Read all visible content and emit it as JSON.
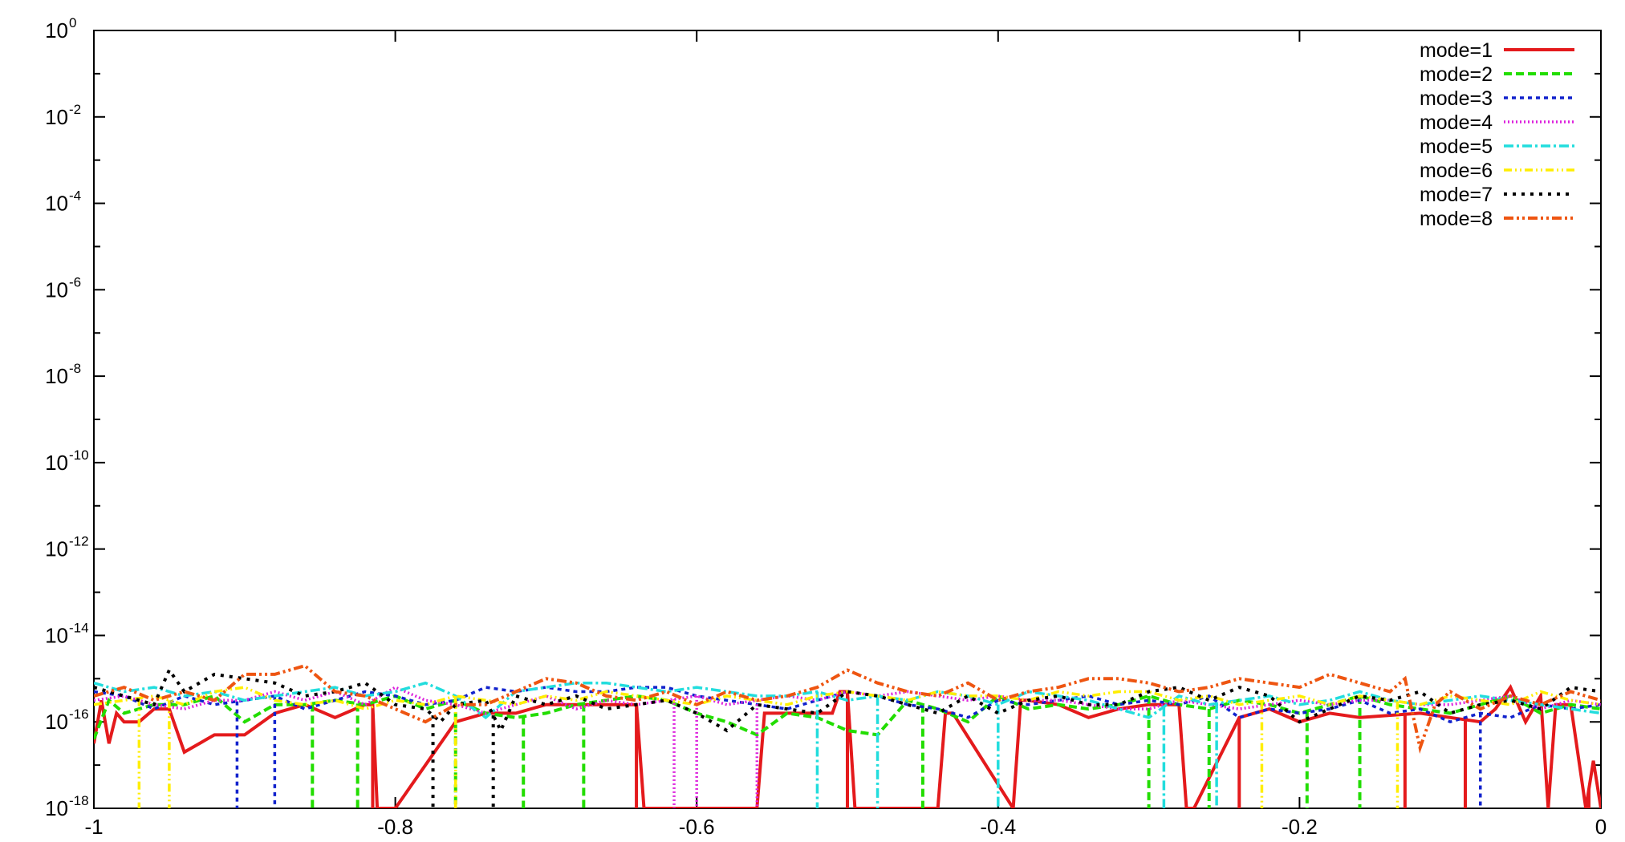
{
  "chart_data": {
    "type": "line",
    "title": "",
    "xlabel": "",
    "ylabel": "",
    "xlim": [
      -1,
      0
    ],
    "ylim": [
      1e-18,
      1
    ],
    "y_scale": "log",
    "x_ticks": [
      {
        "value": -1,
        "label": "-1"
      },
      {
        "value": -0.8,
        "label": "-0.8"
      },
      {
        "value": -0.6,
        "label": "-0.6"
      },
      {
        "value": -0.4,
        "label": "-0.4"
      },
      {
        "value": -0.2,
        "label": "-0.2"
      },
      {
        "value": 0,
        "label": "0"
      }
    ],
    "y_ticks": [
      {
        "value": 1,
        "base": "10",
        "exp": "0"
      },
      {
        "value": 0.01,
        "base": "10",
        "exp": "-2"
      },
      {
        "value": 0.0001,
        "base": "10",
        "exp": "-4"
      },
      {
        "value": 1e-06,
        "base": "10",
        "exp": "-6"
      },
      {
        "value": 1e-08,
        "base": "10",
        "exp": "-8"
      },
      {
        "value": 1e-10,
        "base": "10",
        "exp": "-10"
      },
      {
        "value": 1e-12,
        "base": "10",
        "exp": "-12"
      },
      {
        "value": 1e-14,
        "base": "10",
        "exp": "-14"
      },
      {
        "value": 1e-16,
        "base": "10",
        "exp": "-16"
      },
      {
        "value": 1e-18,
        "base": "10",
        "exp": "-18"
      }
    ],
    "grid": false,
    "legend_position": "top-right",
    "note": "series values are log10 of y",
    "series": [
      {
        "name": "mode=1",
        "color": "#e41a1c",
        "dash": "solid",
        "width": 4,
        "x": [
          -1.0,
          -0.995,
          -0.99,
          -0.985,
          -0.98,
          -0.97,
          -0.96,
          -0.95,
          -0.94,
          -0.92,
          -0.9,
          -0.88,
          -0.86,
          -0.84,
          -0.82,
          -0.815,
          -0.812,
          -0.81,
          -0.8,
          -0.76,
          -0.74,
          -0.72,
          -0.7,
          -0.68,
          -0.66,
          -0.64,
          -0.635,
          -0.63,
          -0.6,
          -0.58,
          -0.56,
          -0.555,
          -0.55,
          -0.53,
          -0.51,
          -0.505,
          -0.5,
          -0.495,
          -0.44,
          -0.435,
          -0.43,
          -0.39,
          -0.385,
          -0.38,
          -0.36,
          -0.34,
          -0.32,
          -0.3,
          -0.28,
          -0.275,
          -0.27,
          -0.24,
          -0.22,
          -0.2,
          -0.18,
          -0.16,
          -0.12,
          -0.1,
          -0.08,
          -0.07,
          -0.06,
          -0.05,
          -0.04,
          -0.035,
          -0.03,
          -0.02,
          -0.01,
          -0.005,
          0.0
        ],
        "y": [
          -16.5,
          -15.5,
          -16.5,
          -15.8,
          -16.0,
          -16.0,
          -15.7,
          -15.7,
          -16.7,
          -16.3,
          -16.3,
          -15.8,
          -15.6,
          -15.9,
          -15.6,
          -15.6,
          -18,
          -18,
          -18,
          -16.0,
          -15.8,
          -15.8,
          -15.6,
          -15.6,
          -15.6,
          -15.6,
          -18,
          -18,
          -18,
          -18,
          -18,
          -15.8,
          -15.8,
          -15.8,
          -15.8,
          -15.3,
          -15.3,
          -18,
          -18,
          -15.8,
          -15.8,
          -18,
          -15.5,
          -15.5,
          -15.6,
          -15.9,
          -15.7,
          -15.6,
          -15.6,
          -18,
          -18,
          -15.9,
          -15.7,
          -16.0,
          -15.8,
          -15.9,
          -15.8,
          -15.9,
          -16.0,
          -15.7,
          -15.2,
          -16.0,
          -15.4,
          -18,
          -15.6,
          -15.6,
          -18,
          -16.9,
          -18
        ],
        "drops": [
          -0.815,
          -0.64,
          -0.5,
          -0.44,
          -0.39,
          -0.275,
          -0.24,
          -0.13,
          -0.09,
          -0.035,
          -0.008
        ]
      },
      {
        "name": "mode=2",
        "color": "#22dd00",
        "dash": "10,5",
        "width": 4,
        "x": [
          -1.0,
          -0.99,
          -0.98,
          -0.97,
          -0.96,
          -0.94,
          -0.92,
          -0.9,
          -0.88,
          -0.86,
          -0.84,
          -0.82,
          -0.8,
          -0.78,
          -0.76,
          -0.74,
          -0.72,
          -0.7,
          -0.68,
          -0.66,
          -0.64,
          -0.62,
          -0.6,
          -0.58,
          -0.56,
          -0.54,
          -0.52,
          -0.5,
          -0.48,
          -0.46,
          -0.44,
          -0.42,
          -0.4,
          -0.38,
          -0.36,
          -0.34,
          -0.32,
          -0.3,
          -0.28,
          -0.26,
          -0.24,
          -0.22,
          -0.2,
          -0.18,
          -0.16,
          -0.14,
          -0.12,
          -0.1,
          -0.08,
          -0.06,
          -0.04,
          -0.02,
          0.0
        ],
        "y": [
          -16.4,
          -15.5,
          -15.8,
          -15.7,
          -15.6,
          -15.6,
          -15.4,
          -16.0,
          -15.6,
          -15.6,
          -15.5,
          -15.6,
          -15.4,
          -15.7,
          -15.5,
          -15.8,
          -15.9,
          -15.8,
          -15.6,
          -15.5,
          -15.4,
          -15.5,
          -15.8,
          -16.0,
          -16.3,
          -15.8,
          -15.9,
          -16.2,
          -16.3,
          -15.5,
          -15.7,
          -16.0,
          -15.4,
          -15.7,
          -15.6,
          -15.7,
          -15.6,
          -15.4,
          -15.6,
          -15.7,
          -15.5,
          -15.6,
          -15.8,
          -15.6,
          -15.4,
          -15.6,
          -15.7,
          -15.8,
          -15.6,
          -15.4,
          -15.8,
          -15.6,
          -15.7
        ],
        "drops": [
          -0.855,
          -0.825,
          -0.76,
          -0.715,
          -0.675,
          -0.45,
          -0.3,
          -0.26,
          -0.195,
          -0.16
        ]
      },
      {
        "name": "mode=3",
        "color": "#1122cc",
        "dash": "5,5",
        "width": 3.5,
        "x": [
          -1.0,
          -0.98,
          -0.96,
          -0.94,
          -0.92,
          -0.9,
          -0.88,
          -0.86,
          -0.84,
          -0.82,
          -0.8,
          -0.78,
          -0.76,
          -0.74,
          -0.72,
          -0.7,
          -0.68,
          -0.66,
          -0.64,
          -0.62,
          -0.6,
          -0.58,
          -0.56,
          -0.54,
          -0.52,
          -0.5,
          -0.48,
          -0.46,
          -0.44,
          -0.42,
          -0.4,
          -0.38,
          -0.36,
          -0.34,
          -0.32,
          -0.3,
          -0.28,
          -0.26,
          -0.24,
          -0.22,
          -0.2,
          -0.18,
          -0.16,
          -0.14,
          -0.12,
          -0.1,
          -0.08,
          -0.06,
          -0.04,
          -0.02,
          0.0
        ],
        "y": [
          -15.3,
          -15.4,
          -15.7,
          -15.4,
          -15.6,
          -15.5,
          -15.4,
          -15.7,
          -15.5,
          -15.3,
          -15.4,
          -15.6,
          -15.5,
          -15.2,
          -15.3,
          -15.2,
          -15.3,
          -15.3,
          -15.2,
          -15.2,
          -15.4,
          -15.5,
          -15.6,
          -15.7,
          -15.5,
          -15.3,
          -15.4,
          -15.6,
          -15.7,
          -15.9,
          -15.5,
          -15.6,
          -15.5,
          -15.4,
          -15.6,
          -15.5,
          -15.6,
          -15.4,
          -15.9,
          -15.7,
          -15.8,
          -15.7,
          -15.5,
          -15.8,
          -15.7,
          -16.0,
          -15.8,
          -15.9,
          -15.6,
          -15.7,
          -15.6
        ],
        "drops": [
          -0.905,
          -0.88,
          -0.08
        ]
      },
      {
        "name": "mode=4",
        "color": "#dd22dd",
        "dash": "2,3",
        "width": 3.5,
        "x": [
          -1.0,
          -0.98,
          -0.96,
          -0.94,
          -0.92,
          -0.9,
          -0.88,
          -0.86,
          -0.84,
          -0.82,
          -0.8,
          -0.78,
          -0.76,
          -0.74,
          -0.72,
          -0.7,
          -0.68,
          -0.66,
          -0.64,
          -0.62,
          -0.6,
          -0.58,
          -0.56,
          -0.54,
          -0.52,
          -0.5,
          -0.48,
          -0.46,
          -0.44,
          -0.42,
          -0.4,
          -0.38,
          -0.36,
          -0.34,
          -0.32,
          -0.3,
          -0.28,
          -0.26,
          -0.24,
          -0.22,
          -0.2,
          -0.18,
          -0.16,
          -0.14,
          -0.12,
          -0.1,
          -0.08,
          -0.06,
          -0.04,
          -0.02,
          0.0
        ],
        "y": [
          -15.5,
          -15.4,
          -15.6,
          -15.7,
          -15.5,
          -15.5,
          -15.3,
          -15.5,
          -15.3,
          -15.6,
          -15.2,
          -15.5,
          -15.6,
          -15.8,
          -15.6,
          -15.4,
          -15.7,
          -15.5,
          -15.6,
          -15.5,
          -15.4,
          -15.6,
          -15.5,
          -15.4,
          -15.5,
          -15.3,
          -15.4,
          -15.3,
          -15.4,
          -15.5,
          -15.4,
          -15.5,
          -15.5,
          -15.6,
          -15.7,
          -15.7,
          -15.5,
          -15.6,
          -15.7,
          -15.6,
          -15.5,
          -15.6,
          -15.5,
          -15.5,
          -15.6,
          -15.6,
          -15.5,
          -15.4,
          -15.7,
          -15.5,
          -15.6
        ],
        "drops": [
          -0.615,
          -0.6,
          -0.56
        ]
      },
      {
        "name": "mode=5",
        "color": "#22dddd",
        "dash": "12,4,3,4",
        "width": 3.5,
        "x": [
          -1.0,
          -0.98,
          -0.96,
          -0.94,
          -0.92,
          -0.9,
          -0.88,
          -0.86,
          -0.84,
          -0.82,
          -0.8,
          -0.78,
          -0.76,
          -0.74,
          -0.72,
          -0.7,
          -0.68,
          -0.66,
          -0.64,
          -0.62,
          -0.6,
          -0.58,
          -0.56,
          -0.54,
          -0.52,
          -0.5,
          -0.48,
          -0.46,
          -0.44,
          -0.42,
          -0.4,
          -0.38,
          -0.36,
          -0.34,
          -0.32,
          -0.3,
          -0.28,
          -0.26,
          -0.24,
          -0.22,
          -0.2,
          -0.18,
          -0.16,
          -0.14,
          -0.12,
          -0.1,
          -0.08,
          -0.06,
          -0.04,
          -0.02,
          0.0
        ],
        "y": [
          -15.1,
          -15.3,
          -15.2,
          -15.4,
          -15.3,
          -15.5,
          -15.4,
          -15.3,
          -15.2,
          -15.4,
          -15.3,
          -15.1,
          -15.4,
          -15.9,
          -15.3,
          -15.2,
          -15.1,
          -15.1,
          -15.2,
          -15.3,
          -15.2,
          -15.3,
          -15.4,
          -15.4,
          -15.3,
          -15.5,
          -15.4,
          -15.5,
          -15.3,
          -15.4,
          -15.6,
          -15.3,
          -15.4,
          -15.5,
          -15.7,
          -15.9,
          -15.4,
          -15.6,
          -15.5,
          -15.4,
          -15.6,
          -15.5,
          -15.3,
          -15.5,
          -15.6,
          -15.5,
          -15.4,
          -15.5,
          -15.6,
          -15.7,
          -15.8
        ],
        "drops": [
          -0.52,
          -0.48,
          -0.4,
          -0.29,
          -0.255
        ]
      },
      {
        "name": "mode=6",
        "color": "#ffee00",
        "dash": "10,4,2,4,2,4",
        "width": 3.5,
        "x": [
          -1.0,
          -0.98,
          -0.96,
          -0.94,
          -0.92,
          -0.9,
          -0.88,
          -0.86,
          -0.84,
          -0.82,
          -0.8,
          -0.78,
          -0.76,
          -0.74,
          -0.72,
          -0.7,
          -0.68,
          -0.66,
          -0.64,
          -0.62,
          -0.6,
          -0.58,
          -0.56,
          -0.54,
          -0.52,
          -0.5,
          -0.48,
          -0.46,
          -0.44,
          -0.42,
          -0.4,
          -0.38,
          -0.36,
          -0.34,
          -0.32,
          -0.3,
          -0.28,
          -0.26,
          -0.24,
          -0.22,
          -0.2,
          -0.18,
          -0.16,
          -0.14,
          -0.12,
          -0.1,
          -0.08,
          -0.06,
          -0.04,
          -0.02,
          0.0
        ],
        "y": [
          -15.6,
          -15.5,
          -15.4,
          -15.6,
          -15.3,
          -15.2,
          -15.5,
          -15.6,
          -15.5,
          -15.7,
          -15.5,
          -15.6,
          -15.4,
          -15.5,
          -15.6,
          -15.4,
          -15.5,
          -15.3,
          -15.4,
          -15.5,
          -15.6,
          -15.4,
          -15.5,
          -15.6,
          -15.4,
          -15.3,
          -15.4,
          -15.5,
          -15.3,
          -15.4,
          -15.4,
          -15.5,
          -15.3,
          -15.4,
          -15.3,
          -15.3,
          -15.5,
          -15.4,
          -15.6,
          -15.5,
          -15.4,
          -15.6,
          -15.4,
          -15.5,
          -15.6,
          -15.4,
          -15.5,
          -15.6,
          -15.3,
          -15.5,
          -15.6
        ],
        "drops": [
          -0.97,
          -0.95,
          -0.76,
          -0.225,
          -0.135
        ]
      },
      {
        "name": "mode=7",
        "color": "#000000",
        "dash": "4,7",
        "width": 4,
        "x": [
          -1.0,
          -0.98,
          -0.96,
          -0.95,
          -0.94,
          -0.92,
          -0.9,
          -0.88,
          -0.86,
          -0.84,
          -0.82,
          -0.8,
          -0.78,
          -0.77,
          -0.76,
          -0.74,
          -0.73,
          -0.72,
          -0.7,
          -0.68,
          -0.66,
          -0.64,
          -0.62,
          -0.6,
          -0.58,
          -0.56,
          -0.54,
          -0.52,
          -0.5,
          -0.48,
          -0.46,
          -0.44,
          -0.42,
          -0.4,
          -0.38,
          -0.36,
          -0.34,
          -0.32,
          -0.3,
          -0.28,
          -0.26,
          -0.24,
          -0.22,
          -0.2,
          -0.18,
          -0.16,
          -0.14,
          -0.12,
          -0.1,
          -0.08,
          -0.06,
          -0.04,
          -0.02,
          0.0
        ],
        "y": [
          -15.2,
          -15.4,
          -15.6,
          -14.8,
          -15.3,
          -14.9,
          -15.0,
          -15.1,
          -15.4,
          -15.3,
          -15.1,
          -15.6,
          -15.7,
          -16.0,
          -15.6,
          -15.5,
          -16.2,
          -15.4,
          -15.6,
          -15.4,
          -15.7,
          -15.6,
          -15.5,
          -15.8,
          -16.2,
          -15.6,
          -15.7,
          -15.8,
          -15.3,
          -15.4,
          -15.6,
          -15.8,
          -15.4,
          -15.8,
          -15.5,
          -15.4,
          -15.6,
          -15.6,
          -15.3,
          -15.2,
          -15.5,
          -15.2,
          -15.4,
          -16.0,
          -15.7,
          -15.4,
          -15.5,
          -15.3,
          -15.8,
          -15.6,
          -15.5,
          -15.7,
          -15.2,
          -15.3
        ],
        "drops": [
          -0.775,
          -0.735
        ]
      },
      {
        "name": "mode=8",
        "color": "#ee5511",
        "dash": "12,4,3,4,3,4",
        "width": 4,
        "x": [
          -1.0,
          -0.98,
          -0.96,
          -0.94,
          -0.92,
          -0.9,
          -0.88,
          -0.86,
          -0.84,
          -0.82,
          -0.8,
          -0.78,
          -0.76,
          -0.74,
          -0.72,
          -0.7,
          -0.68,
          -0.66,
          -0.64,
          -0.62,
          -0.6,
          -0.58,
          -0.56,
          -0.54,
          -0.52,
          -0.5,
          -0.48,
          -0.46,
          -0.44,
          -0.42,
          -0.4,
          -0.38,
          -0.36,
          -0.34,
          -0.32,
          -0.3,
          -0.28,
          -0.26,
          -0.24,
          -0.22,
          -0.2,
          -0.18,
          -0.16,
          -0.14,
          -0.13,
          -0.12,
          -0.11,
          -0.1,
          -0.08,
          -0.06,
          -0.04,
          -0.02,
          0.0
        ],
        "y": [
          -15.4,
          -15.2,
          -15.5,
          -15.3,
          -15.5,
          -14.9,
          -14.9,
          -14.7,
          -15.3,
          -15.4,
          -15.7,
          -16.0,
          -15.6,
          -15.6,
          -15.3,
          -15.0,
          -15.1,
          -15.4,
          -15.5,
          -15.3,
          -15.6,
          -15.3,
          -15.5,
          -15.4,
          -15.2,
          -14.8,
          -15.1,
          -15.3,
          -15.4,
          -15.1,
          -15.5,
          -15.3,
          -15.2,
          -15.0,
          -15.0,
          -15.1,
          -15.3,
          -15.2,
          -15.0,
          -15.1,
          -15.2,
          -14.9,
          -15.1,
          -15.3,
          -15.0,
          -16.6,
          -15.6,
          -15.3,
          -15.7,
          -15.4,
          -15.6,
          -15.3,
          -15.5
        ],
        "drops": []
      }
    ]
  }
}
